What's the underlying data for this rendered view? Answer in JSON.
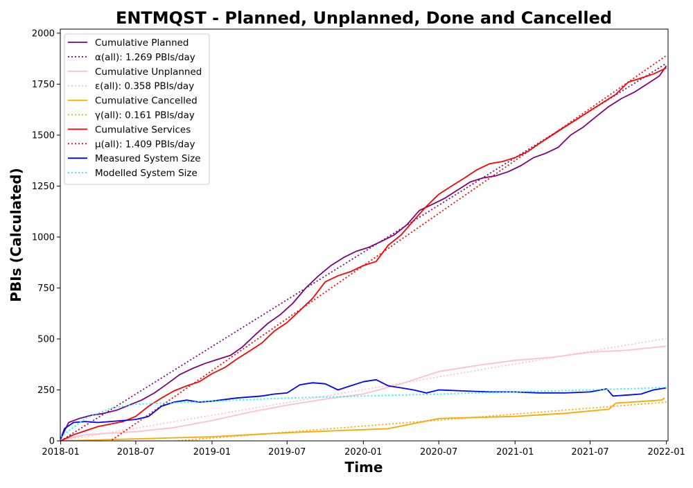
{
  "chart_data": {
    "type": "line",
    "title": "ENTMQST - Planned, Unplanned, Done  and Cancelled",
    "xlabel": "Time",
    "ylabel": "PBIs (Calculated)",
    "xlim": [
      "2017-12-31",
      "2022-01-05"
    ],
    "ylim": [
      0,
      2020
    ],
    "x_ticks": [
      "2018-01",
      "2018-07",
      "2019-01",
      "2019-07",
      "2020-01",
      "2020-07",
      "2021-01",
      "2021-07",
      "2022-01"
    ],
    "y_ticks": [
      0,
      250,
      500,
      750,
      1000,
      1250,
      1500,
      1750,
      2000
    ],
    "grid": false,
    "legend_position": "top-left",
    "series": [
      {
        "name": "Cumulative Planned",
        "color": "#800080",
        "style": "solid",
        "x": [
          "2018-01-01",
          "2018-01-20",
          "2018-02-15",
          "2018-03-15",
          "2018-04-15",
          "2018-05-15",
          "2018-06-15",
          "2018-07-15",
          "2018-08-15",
          "2018-09-15",
          "2018-10-15",
          "2018-11-15",
          "2018-12-15",
          "2019-01-15",
          "2019-02-15",
          "2019-03-15",
          "2019-04-15",
          "2019-05-15",
          "2019-06-15",
          "2019-07-15",
          "2019-08-15",
          "2019-09-15",
          "2019-10-15",
          "2019-11-15",
          "2019-12-15",
          "2020-01-15",
          "2020-02-15",
          "2020-03-15",
          "2020-04-15",
          "2020-05-15",
          "2020-06-15",
          "2020-07-15",
          "2020-08-15",
          "2020-09-15",
          "2020-10-15",
          "2020-11-15",
          "2020-12-15",
          "2021-01-15",
          "2021-02-15",
          "2021-03-15",
          "2021-04-15",
          "2021-05-15",
          "2021-06-15",
          "2021-07-15",
          "2021-08-15",
          "2021-09-15",
          "2021-10-15",
          "2021-11-15",
          "2021-12-15",
          "2022-01-01"
        ],
        "y": [
          10,
          90,
          110,
          125,
          135,
          150,
          175,
          200,
          235,
          280,
          325,
          355,
          380,
          400,
          420,
          460,
          520,
          575,
          620,
          675,
          750,
          810,
          860,
          900,
          930,
          950,
          980,
          1010,
          1060,
          1130,
          1160,
          1190,
          1230,
          1270,
          1290,
          1300,
          1320,
          1350,
          1390,
          1410,
          1440,
          1500,
          1540,
          1590,
          1640,
          1680,
          1710,
          1750,
          1790,
          1840
        ]
      },
      {
        "name": "α(all): 1.269 PBIs/day",
        "color": "#800080",
        "style": "dotted",
        "x": [
          "2018-01-01",
          "2022-01-01"
        ],
        "y": [
          0,
          1852
        ]
      },
      {
        "name": "Cumulative Unplanned",
        "color": "#ffc0cb",
        "style": "solid",
        "x": [
          "2018-01-01",
          "2018-03-01",
          "2018-07-01",
          "2018-10-01",
          "2019-01-01",
          "2019-04-01",
          "2019-07-01",
          "2019-10-01",
          "2020-01-01",
          "2020-04-01",
          "2020-07-01",
          "2020-10-01",
          "2021-01-01",
          "2021-04-01",
          "2021-07-01",
          "2021-10-01",
          "2022-01-01"
        ],
        "y": [
          5,
          30,
          45,
          65,
          100,
          140,
          175,
          205,
          230,
          280,
          340,
          370,
          395,
          410,
          435,
          445,
          465
        ]
      },
      {
        "name": "ε(all): 0.358 PBIs/day",
        "color": "#ffc0cb",
        "style": "dotted",
        "x": [
          "2018-01-01",
          "2022-01-01"
        ],
        "y": [
          0,
          503
        ]
      },
      {
        "name": "Cumulative Cancelled",
        "color": "#ffa500",
        "style": "solid",
        "x": [
          "2018-01-01",
          "2018-03-01",
          "2018-07-01",
          "2019-01-01",
          "2019-07-01",
          "2020-01-01",
          "2020-03-01",
          "2020-07-01",
          "2021-01-01",
          "2021-05-01",
          "2021-08-15",
          "2021-09-01",
          "2021-12-20",
          "2021-12-28"
        ],
        "y": [
          0,
          3,
          10,
          20,
          40,
          55,
          60,
          110,
          120,
          135,
          155,
          185,
          200,
          210
        ]
      },
      {
        "name": "γ(all): 0.161 PBIs/day",
        "color": "#ffa500",
        "style": "dotted",
        "x": [
          "2018-01-01",
          "2022-01-01"
        ],
        "y": [
          -45,
          190
        ]
      },
      {
        "name": "Cumulative Services",
        "color": "#ff0000",
        "style": "solid",
        "x": [
          "2018-01-01",
          "2018-02-01",
          "2018-04-01",
          "2018-06-01",
          "2018-07-01",
          "2018-08-01",
          "2018-09-01",
          "2018-10-01",
          "2018-11-01",
          "2018-12-01",
          "2019-01-01",
          "2019-02-01",
          "2019-03-01",
          "2019-04-01",
          "2019-05-01",
          "2019-06-01",
          "2019-07-01",
          "2019-08-01",
          "2019-09-01",
          "2019-10-01",
          "2019-11-01",
          "2019-12-01",
          "2020-01-01",
          "2020-02-01",
          "2020-03-01",
          "2020-04-01",
          "2020-05-01",
          "2020-06-01",
          "2020-07-01",
          "2020-08-01",
          "2020-09-01",
          "2020-10-01",
          "2020-11-01",
          "2020-12-01",
          "2021-01-01",
          "2021-02-01",
          "2021-03-01",
          "2021-04-01",
          "2021-05-01",
          "2021-06-01",
          "2021-07-01",
          "2021-08-01",
          "2021-09-01",
          "2021-10-01",
          "2021-11-01",
          "2021-12-01",
          "2022-01-01"
        ],
        "y": [
          0,
          30,
          70,
          95,
          120,
          170,
          210,
          245,
          270,
          290,
          330,
          360,
          400,
          440,
          480,
          540,
          580,
          640,
          700,
          780,
          810,
          830,
          860,
          880,
          960,
          1010,
          1080,
          1150,
          1210,
          1250,
          1290,
          1330,
          1360,
          1370,
          1390,
          1420,
          1460,
          1500,
          1540,
          1580,
          1620,
          1660,
          1700,
          1760,
          1780,
          1800,
          1830
        ]
      },
      {
        "name": "μ(all): 1.409 PBIs/day",
        "color": "#ff0000",
        "style": "dotted",
        "x": [
          "2018-01-01",
          "2022-01-01"
        ],
        "y": [
          -170,
          1890
        ]
      },
      {
        "name": "Measured System Size",
        "color": "#0000ff",
        "style": "solid",
        "x": [
          "2018-01-01",
          "2018-01-10",
          "2018-02-01",
          "2018-03-01",
          "2018-04-01",
          "2018-05-01",
          "2018-06-01",
          "2018-07-01",
          "2018-08-01",
          "2018-09-01",
          "2018-10-01",
          "2018-11-01",
          "2018-12-01",
          "2019-01-01",
          "2019-03-01",
          "2019-05-01",
          "2019-06-01",
          "2019-07-01",
          "2019-08-01",
          "2019-09-01",
          "2019-10-01",
          "2019-11-01",
          "2019-12-01",
          "2020-01-01",
          "2020-02-01",
          "2020-03-01",
          "2020-04-01",
          "2020-05-01",
          "2020-06-01",
          "2020-07-01",
          "2020-09-01",
          "2020-11-01",
          "2021-01-01",
          "2021-03-01",
          "2021-05-01",
          "2021-07-01",
          "2021-08-10",
          "2021-08-25",
          "2021-10-01",
          "2021-11-01",
          "2021-12-01",
          "2022-01-01"
        ],
        "y": [
          10,
          60,
          90,
          95,
          90,
          95,
          100,
          105,
          120,
          170,
          190,
          200,
          190,
          195,
          210,
          220,
          230,
          235,
          275,
          285,
          280,
          250,
          270,
          290,
          300,
          270,
          260,
          250,
          235,
          250,
          245,
          240,
          240,
          235,
          235,
          240,
          255,
          220,
          225,
          230,
          250,
          260
        ]
      },
      {
        "name": "Modelled System Size",
        "color": "#00ffff",
        "style": "dotted",
        "x": [
          "2018-01-01",
          "2018-03-01",
          "2018-05-01",
          "2018-07-01",
          "2019-01-01",
          "2019-07-01",
          "2020-01-01",
          "2020-07-01",
          "2021-01-01",
          "2021-07-01",
          "2022-01-01"
        ],
        "y": [
          20,
          110,
          160,
          180,
          195,
          210,
          220,
          230,
          240,
          250,
          262
        ]
      }
    ]
  }
}
